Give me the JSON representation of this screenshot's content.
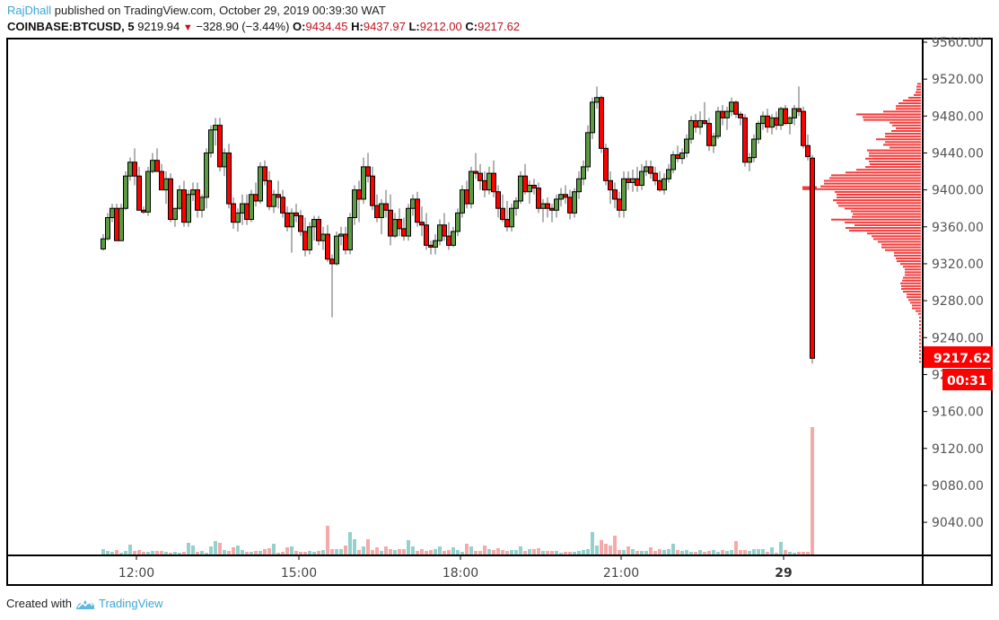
{
  "header": {
    "author": "RajDhall",
    "published_text": "published on TradingView.com, October 29, 2019 00:39:30 WAT",
    "symbol": "COINBASE:BTCUSD, 5",
    "last_price": "9219.94",
    "change_arrow": "▼",
    "change": "−328.90 (−3.44%)",
    "open_label": "O:",
    "open": "9434.45",
    "high_label": "H:",
    "high": "9437.97",
    "low_label": "L:",
    "low": "9212.00",
    "close_label": "C:",
    "close": "9217.62"
  },
  "price_axis": {
    "ticks": [
      "9560.00",
      "9520.00",
      "9480.00",
      "9440.00",
      "9400.00",
      "9360.00",
      "9320.00",
      "9280.00",
      "9240.00",
      "9160.00",
      "9120.00",
      "9080.00",
      "9040.00"
    ],
    "current_price_label": "9217.62",
    "countdown_label": "00:31"
  },
  "time_axis": {
    "ticks": [
      "12:00",
      "15:00",
      "18:00",
      "21:00",
      "29"
    ]
  },
  "footer": {
    "created_with": "Created with",
    "brand": "TradingView"
  },
  "colors": {
    "up": "#5b9a44",
    "down": "#ff0000",
    "vol_up": "#93d2cc",
    "vol_down": "#f5a9a9",
    "profile": "#f23b3b",
    "price_tag": "#ff0000",
    "author": "#3ba5d6"
  },
  "chart_data": {
    "type": "candlestick",
    "title": "COINBASE:BTCUSD, 5",
    "interval": "5m",
    "xlabel": "",
    "ylabel": "",
    "ylim": [
      9000,
      9570
    ],
    "x_tick_labels": [
      "12:00",
      "15:00",
      "18:00",
      "21:00",
      "29"
    ],
    "y_tick_labels": [
      "9560.00",
      "9520.00",
      "9480.00",
      "9440.00",
      "9400.00",
      "9360.00",
      "9320.00",
      "9280.00",
      "9240.00",
      "9200.00",
      "9160.00",
      "9120.00",
      "9080.00",
      "9040.00"
    ],
    "legend": [],
    "annotations": [
      "9217.62",
      "00:31"
    ],
    "last": {
      "open": 9434.45,
      "high": 9437.97,
      "low": 9212.0,
      "close": 9217.62,
      "change": -328.9,
      "change_pct": -3.44
    },
    "candles": [
      [
        9336,
        9352,
        9334,
        9347
      ],
      [
        9347,
        9375,
        9345,
        9370
      ],
      [
        9370,
        9385,
        9365,
        9380
      ],
      [
        9380,
        9385,
        9355,
        9345
      ],
      [
        9345,
        9385,
        9345,
        9380
      ],
      [
        9380,
        9420,
        9378,
        9415
      ],
      [
        9415,
        9435,
        9410,
        9430
      ],
      [
        9430,
        9445,
        9405,
        9415
      ],
      [
        9415,
        9425,
        9378,
        9378
      ],
      [
        9378,
        9382,
        9374,
        9376
      ],
      [
        9376,
        9425,
        9372,
        9420
      ],
      [
        9420,
        9440,
        9418,
        9432
      ],
      [
        9432,
        9445,
        9425,
        9420
      ],
      [
        9420,
        9428,
        9400,
        9400
      ],
      [
        9400,
        9420,
        9385,
        9412
      ],
      [
        9412,
        9418,
        9365,
        9368
      ],
      [
        9368,
        9380,
        9360,
        9380
      ],
      [
        9380,
        9405,
        9378,
        9400
      ],
      [
        9400,
        9410,
        9360,
        9365
      ],
      [
        9365,
        9400,
        9360,
        9395
      ],
      [
        9395,
        9408,
        9388,
        9400
      ],
      [
        9400,
        9408,
        9370,
        9378
      ],
      [
        9378,
        9395,
        9370,
        9392
      ],
      [
        9392,
        9445,
        9380,
        9440
      ],
      [
        9440,
        9470,
        9435,
        9465
      ],
      [
        9465,
        9478,
        9448,
        9470
      ],
      [
        9470,
        9478,
        9420,
        9425
      ],
      [
        9425,
        9445,
        9415,
        9440
      ],
      [
        9440,
        9450,
        9380,
        9385
      ],
      [
        9385,
        9392,
        9358,
        9365
      ],
      [
        9365,
        9380,
        9355,
        9375
      ],
      [
        9375,
        9395,
        9362,
        9385
      ],
      [
        9385,
        9395,
        9362,
        9368
      ],
      [
        9368,
        9400,
        9365,
        9395
      ],
      [
        9395,
        9408,
        9382,
        9388
      ],
      [
        9388,
        9430,
        9385,
        9425
      ],
      [
        9425,
        9432,
        9405,
        9410
      ],
      [
        9410,
        9420,
        9378,
        9382
      ],
      [
        9382,
        9400,
        9375,
        9395
      ],
      [
        9395,
        9410,
        9380,
        9392
      ],
      [
        9392,
        9400,
        9370,
        9375
      ],
      [
        9375,
        9382,
        9355,
        9360
      ],
      [
        9360,
        9380,
        9332,
        9375
      ],
      [
        9375,
        9385,
        9365,
        9372
      ],
      [
        9372,
        9378,
        9350,
        9355
      ],
      [
        9355,
        9370,
        9328,
        9335
      ],
      [
        9335,
        9365,
        9330,
        9360
      ],
      [
        9360,
        9372,
        9345,
        9368
      ],
      [
        9368,
        9372,
        9340,
        9345
      ],
      [
        9345,
        9360,
        9335,
        9352
      ],
      [
        9352,
        9362,
        9322,
        9325
      ],
      [
        9325,
        9330,
        9262,
        9320
      ],
      [
        9320,
        9355,
        9318,
        9350
      ],
      [
        9350,
        9360,
        9340,
        9352
      ],
      [
        9352,
        9360,
        9330,
        9335
      ],
      [
        9335,
        9375,
        9330,
        9370
      ],
      [
        9370,
        9405,
        9362,
        9400
      ],
      [
        9400,
        9410,
        9365,
        9390
      ],
      [
        9390,
        9435,
        9385,
        9425
      ],
      [
        9425,
        9440,
        9408,
        9415
      ],
      [
        9415,
        9425,
        9378,
        9383
      ],
      [
        9383,
        9395,
        9365,
        9370
      ],
      [
        9370,
        9390,
        9352,
        9385
      ],
      [
        9385,
        9400,
        9370,
        9378
      ],
      [
        9378,
        9395,
        9340,
        9350
      ],
      [
        9350,
        9375,
        9348,
        9368
      ],
      [
        9368,
        9380,
        9350,
        9358
      ],
      [
        9358,
        9370,
        9345,
        9350
      ],
      [
        9350,
        9385,
        9345,
        9380
      ],
      [
        9380,
        9395,
        9372,
        9390
      ],
      [
        9390,
        9398,
        9360,
        9365
      ],
      [
        9365,
        9382,
        9350,
        9362
      ],
      [
        9362,
        9375,
        9335,
        9340
      ],
      [
        9340,
        9345,
        9330,
        9338
      ],
      [
        9338,
        9352,
        9330,
        9345
      ],
      [
        9345,
        9368,
        9340,
        9362
      ],
      [
        9362,
        9375,
        9345,
        9350
      ],
      [
        9350,
        9365,
        9335,
        9340
      ],
      [
        9340,
        9360,
        9338,
        9355
      ],
      [
        9355,
        9380,
        9350,
        9375
      ],
      [
        9375,
        9405,
        9370,
        9400
      ],
      [
        9400,
        9410,
        9380,
        9385
      ],
      [
        9385,
        9425,
        9380,
        9420
      ],
      [
        9420,
        9440,
        9412,
        9418
      ],
      [
        9418,
        9428,
        9400,
        9410
      ],
      [
        9410,
        9420,
        9392,
        9400
      ],
      [
        9400,
        9425,
        9395,
        9418
      ],
      [
        9418,
        9432,
        9392,
        9398
      ],
      [
        9398,
        9405,
        9370,
        9380
      ],
      [
        9380,
        9395,
        9365,
        9368
      ],
      [
        9368,
        9388,
        9355,
        9360
      ],
      [
        9360,
        9385,
        9355,
        9380
      ],
      [
        9380,
        9392,
        9372,
        9388
      ],
      [
        9388,
        9420,
        9385,
        9415
      ],
      [
        9415,
        9428,
        9395,
        9398
      ],
      [
        9398,
        9410,
        9385,
        9405
      ],
      [
        9405,
        9412,
        9395,
        9402
      ],
      [
        9402,
        9408,
        9375,
        9380
      ],
      [
        9380,
        9390,
        9365,
        9385
      ],
      [
        9385,
        9392,
        9370,
        9380
      ],
      [
        9380,
        9385,
        9365,
        9378
      ],
      [
        9378,
        9395,
        9370,
        9390
      ],
      [
        9390,
        9402,
        9382,
        9395
      ],
      [
        9395,
        9405,
        9385,
        9392
      ],
      [
        9392,
        9400,
        9368,
        9375
      ],
      [
        9375,
        9402,
        9370,
        9398
      ],
      [
        9398,
        9420,
        9390,
        9412
      ],
      [
        9412,
        9432,
        9405,
        9425
      ],
      [
        9425,
        9470,
        9420,
        9462
      ],
      [
        9462,
        9500,
        9455,
        9495
      ],
      [
        9495,
        9512,
        9488,
        9500
      ],
      [
        9500,
        9502,
        9440,
        9445
      ],
      [
        9445,
        9450,
        9405,
        9410
      ],
      [
        9410,
        9420,
        9385,
        9400
      ],
      [
        9400,
        9408,
        9380,
        9390
      ],
      [
        9390,
        9398,
        9370,
        9378
      ],
      [
        9378,
        9420,
        9370,
        9412
      ],
      [
        9412,
        9420,
        9400,
        9408
      ],
      [
        9408,
        9422,
        9398,
        9412
      ],
      [
        9412,
        9425,
        9398,
        9405
      ],
      [
        9405,
        9428,
        9400,
        9420
      ],
      [
        9420,
        9432,
        9415,
        9425
      ],
      [
        9425,
        9432,
        9412,
        9418
      ],
      [
        9418,
        9425,
        9405,
        9410
      ],
      [
        9410,
        9420,
        9398,
        9400
      ],
      [
        9400,
        9418,
        9395,
        9412
      ],
      [
        9412,
        9428,
        9408,
        9422
      ],
      [
        9422,
        9442,
        9418,
        9438
      ],
      [
        9438,
        9448,
        9430,
        9434
      ],
      [
        9434,
        9445,
        9428,
        9440
      ],
      [
        9440,
        9460,
        9435,
        9455
      ],
      [
        9455,
        9480,
        9450,
        9475
      ],
      [
        9475,
        9482,
        9462,
        9468
      ],
      [
        9468,
        9485,
        9460,
        9475
      ],
      [
        9475,
        9495,
        9470,
        9472
      ],
      [
        9472,
        9478,
        9442,
        9448
      ],
      [
        9448,
        9462,
        9440,
        9458
      ],
      [
        9458,
        9490,
        9455,
        9485
      ],
      [
        9485,
        9492,
        9470,
        9478
      ],
      [
        9478,
        9490,
        9465,
        9485
      ],
      [
        9485,
        9500,
        9480,
        9495
      ],
      [
        9495,
        9497,
        9478,
        9482
      ],
      [
        9482,
        9485,
        9470,
        9478
      ],
      [
        9478,
        9482,
        9425,
        9430
      ],
      [
        9430,
        9440,
        9420,
        9435
      ],
      [
        9435,
        9460,
        9430,
        9455
      ],
      [
        9455,
        9475,
        9450,
        9472
      ],
      [
        9472,
        9485,
        9465,
        9480
      ],
      [
        9480,
        9488,
        9462,
        9468
      ],
      [
        9468,
        9482,
        9460,
        9478
      ],
      [
        9478,
        9485,
        9465,
        9470
      ],
      [
        9470,
        9490,
        9465,
        9488
      ],
      [
        9488,
        9492,
        9470,
        9472
      ],
      [
        9472,
        9480,
        9460,
        9478
      ],
      [
        9478,
        9492,
        9470,
        9488
      ],
      [
        9488,
        9512,
        9480,
        9485
      ],
      [
        9485,
        9490,
        9445,
        9448
      ],
      [
        9448,
        9460,
        9432,
        9436
      ],
      [
        9434.45,
        9437.97,
        9212.0,
        9217.62
      ]
    ],
    "volume": {
      "note": "relative bar heights in px, up/down coloured per candle",
      "values": [
        6,
        4,
        3,
        5,
        2,
        4,
        11,
        4,
        5,
        3,
        3,
        4,
        4,
        4,
        3,
        2,
        3,
        2,
        3,
        13,
        10,
        3,
        4,
        2,
        9,
        15,
        13,
        5,
        4,
        8,
        10,
        5,
        3,
        3,
        4,
        4,
        6,
        7,
        12,
        2,
        3,
        8,
        9,
        4,
        3,
        3,
        4,
        3,
        4,
        5,
        32,
        6,
        6,
        6,
        10,
        25,
        17,
        5,
        9,
        17,
        5,
        8,
        4,
        9,
        6,
        5,
        6,
        6,
        16,
        9,
        4,
        6,
        4,
        5,
        6,
        9,
        4,
        5,
        8,
        5,
        3,
        12,
        9,
        4,
        4,
        10,
        6,
        5,
        7,
        5,
        4,
        5,
        5,
        9,
        4,
        6,
        6,
        7,
        4,
        4,
        4,
        4,
        2,
        3,
        3,
        3,
        4,
        5,
        6,
        25,
        10,
        16,
        12,
        10,
        21,
        5,
        5,
        9,
        6,
        4,
        4,
        4,
        8,
        4,
        6,
        5,
        6,
        12,
        5,
        4,
        5,
        3,
        3,
        5,
        3,
        4,
        5,
        3,
        5,
        4,
        5,
        15,
        5,
        5,
        4,
        6,
        6,
        6,
        3,
        8,
        2,
        14,
        5,
        3,
        2,
        3,
        3,
        3,
        3,
        3,
        2,
        3,
        3,
        7,
        3,
        3,
        5,
        16,
        6,
        48,
        2
      ]
    }
  }
}
